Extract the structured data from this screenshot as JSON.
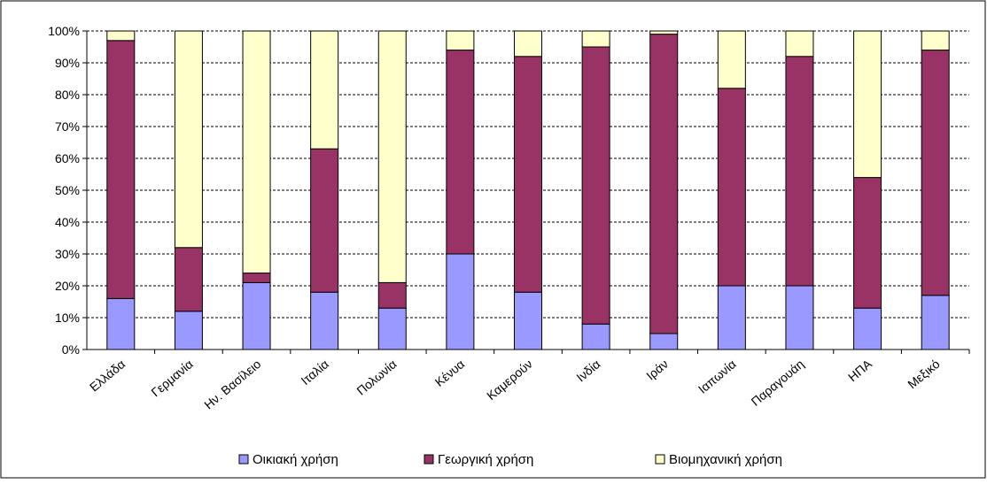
{
  "chart_data": {
    "type": "bar",
    "stacked": true,
    "percent": true,
    "categories": [
      "Ελλάδα",
      "Γερμανία",
      "Ην. Βασίλειο",
      "Ιταλία",
      "Πολωνία",
      "Κένυα",
      "Καμερούν",
      "Ινδία",
      "Ιράν",
      "Ιαπωνία",
      "Παραγουάη",
      "ΗΠΑ",
      "Μεξικό"
    ],
    "series": [
      {
        "name": "Οικιακή χρήση",
        "color": "#9999ff",
        "values": [
          16,
          12,
          21,
          18,
          13,
          30,
          18,
          8,
          5,
          20,
          20,
          13,
          17
        ]
      },
      {
        "name": "Γεωργική χρήση",
        "color": "#993366",
        "values": [
          81,
          20,
          3,
          45,
          8,
          64,
          74,
          87,
          94,
          62,
          72,
          41,
          77
        ]
      },
      {
        "name": "Βιομηχανική χρήση",
        "color": "#ffffcc",
        "values": [
          3,
          68,
          76,
          37,
          79,
          6,
          8,
          5,
          1,
          18,
          8,
          46,
          6
        ]
      }
    ],
    "yaxis": {
      "min": 0,
      "max": 100,
      "step": 10,
      "tick_format": "{v}%"
    },
    "grid": true,
    "grid_style": "dashed",
    "legend_position": "bottom"
  }
}
